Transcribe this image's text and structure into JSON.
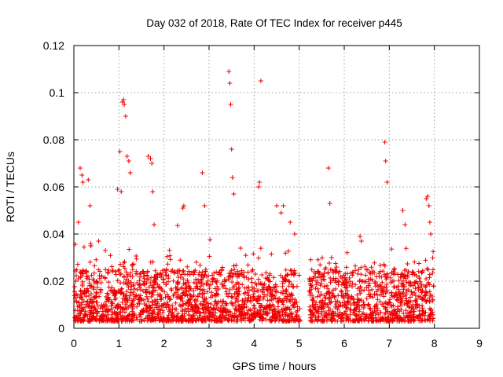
{
  "chart_data": {
    "type": "scatter",
    "title": "Day 032 of 2018, Rate Of TEC Index for receiver p445",
    "xlabel": "GPS time / hours",
    "ylabel": "ROTI / TECUs",
    "xlim": [
      0,
      9
    ],
    "ylim": [
      0,
      0.12
    ],
    "x_ticks": [
      "0",
      "1",
      "2",
      "3",
      "4",
      "5",
      "6",
      "7",
      "8",
      "9"
    ],
    "y_ticks": [
      "0",
      "0.02",
      "0.04",
      "0.06",
      "0.08",
      "0.1",
      "0.12"
    ],
    "grid": true,
    "marker": "+",
    "color": "#ee0000",
    "series": [
      {
        "name": "ROTI",
        "data_gaps_hours": [
          [
            5.02,
            5.22
          ]
        ],
        "x": [
          0.1,
          0.14,
          0.18,
          0.2,
          0.32,
          0.36,
          0.38,
          0.55,
          0.62,
          0.97,
          1.02,
          1.05,
          1.08,
          1.1,
          1.12,
          1.15,
          1.18,
          1.22,
          1.25,
          1.65,
          1.7,
          1.73,
          1.75,
          1.78,
          2.42,
          2.44,
          2.85,
          2.9,
          3.44,
          3.46,
          3.48,
          3.5,
          3.52,
          3.55,
          3.7,
          4.1,
          4.12,
          4.15,
          4.5,
          4.6,
          4.65,
          4.8,
          4.9,
          5.65,
          5.68,
          5.72,
          6.35,
          6.38,
          6.9,
          6.92,
          6.95,
          7.3,
          7.35,
          7.82,
          7.85,
          7.88,
          7.9,
          7.92
        ],
        "y": [
          0.045,
          0.068,
          0.065,
          0.062,
          0.063,
          0.052,
          0.035,
          0.037,
          0.022,
          0.059,
          0.075,
          0.058,
          0.096,
          0.097,
          0.095,
          0.09,
          0.073,
          0.071,
          0.066,
          0.073,
          0.072,
          0.07,
          0.058,
          0.044,
          0.051,
          0.052,
          0.066,
          0.052,
          0.109,
          0.104,
          0.095,
          0.076,
          0.064,
          0.057,
          0.034,
          0.06,
          0.062,
          0.105,
          0.052,
          0.049,
          0.052,
          0.045,
          0.04,
          0.068,
          0.053,
          0.03,
          0.039,
          0.037,
          0.079,
          0.071,
          0.062,
          0.05,
          0.044,
          0.055,
          0.056,
          0.052,
          0.045,
          0.04
        ]
      }
    ]
  }
}
